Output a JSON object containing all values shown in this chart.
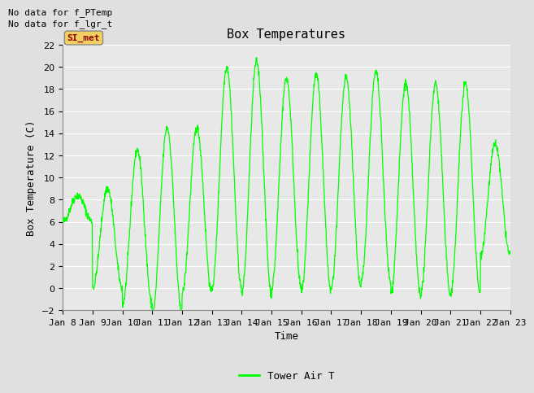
{
  "title": "Box Temperatures",
  "xlabel": "Time",
  "ylabel": "Box Temperature (C)",
  "no_data_texts": [
    "No data for f_PTemp",
    "No data for f_lgr_t"
  ],
  "si_met_label": "SI_met",
  "legend_label": "Tower Air T",
  "legend_color": "#00ff00",
  "ylim": [
    -2,
    22
  ],
  "yticks": [
    -2,
    0,
    2,
    4,
    6,
    8,
    10,
    12,
    14,
    16,
    18,
    20,
    22
  ],
  "x_tick_labels": [
    "Jan 8",
    "Jan 9",
    "Jan 10",
    "Jan 11",
    "Jan 12",
    "Jan 13",
    "Jan 14",
    "Jan 15",
    "Jan 16",
    "Jan 17",
    "Jan 18",
    "Jan 19",
    "Jan 20",
    "Jan 21",
    "Jan 22",
    "Jan 23"
  ],
  "background_color": "#e8e8e8",
  "line_color": "#00ff00",
  "grid_color": "#ffffff",
  "fig_background": "#e0e0e0",
  "title_fontsize": 11,
  "axis_label_fontsize": 9,
  "tick_fontsize": 8,
  "no_data_fontsize": 8,
  "si_met_fontsize": 8,
  "legend_fontsize": 9,
  "day_params": [
    {
      "base": 7.2,
      "amp": 1.2,
      "label": "Jan 8"
    },
    {
      "base": 4.5,
      "amp": 4.5,
      "label": "Jan 9"
    },
    {
      "base": 5.5,
      "amp": 7.0,
      "label": "Jan 10"
    },
    {
      "base": 6.0,
      "amp": 8.5,
      "label": "Jan 11"
    },
    {
      "base": 7.0,
      "amp": 7.5,
      "label": "Jan 12"
    },
    {
      "base": 10.0,
      "amp": 10.0,
      "label": "Jan 13"
    },
    {
      "base": 10.0,
      "amp": 10.5,
      "label": "Jan 14"
    },
    {
      "base": 9.5,
      "amp": 9.5,
      "label": "Jan 15"
    },
    {
      "base": 9.5,
      "amp": 9.8,
      "label": "Jan 16"
    },
    {
      "base": 9.5,
      "amp": 9.5,
      "label": "Jan 17"
    },
    {
      "base": 10.0,
      "amp": 9.5,
      "label": "Jan 18"
    },
    {
      "base": 9.0,
      "amp": 9.5,
      "label": "Jan 19"
    },
    {
      "base": 9.0,
      "amp": 9.5,
      "label": "Jan 20"
    },
    {
      "base": 9.0,
      "amp": 9.5,
      "label": "Jan 21"
    },
    {
      "base": 8.0,
      "amp": 5.0,
      "label": "Jan 22"
    }
  ]
}
